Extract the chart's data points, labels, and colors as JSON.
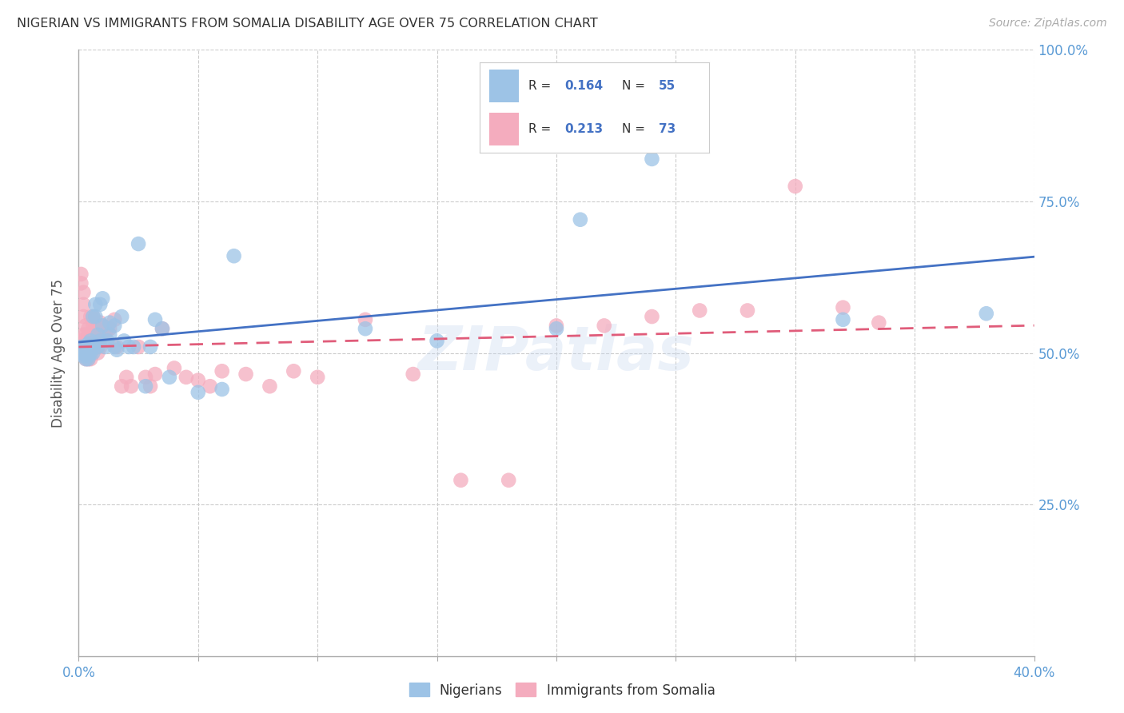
{
  "title": "NIGERIAN VS IMMIGRANTS FROM SOMALIA DISABILITY AGE OVER 75 CORRELATION CHART",
  "source": "Source: ZipAtlas.com",
  "ylabel": "Disability Age Over 75",
  "legend_label1": "Nigerians",
  "legend_label2": "Immigrants from Somalia",
  "r1": 0.164,
  "n1": 55,
  "r2": 0.213,
  "n2": 73,
  "xmin": 0.0,
  "xmax": 0.4,
  "ymin": 0.0,
  "ymax": 1.0,
  "color_blue": "#9DC3E6",
  "color_pink": "#F4ACBE",
  "line_blue": "#4472C4",
  "line_pink": "#E05C7A",
  "background": "#FFFFFF",
  "nigerians_x": [
    0.001,
    0.001,
    0.002,
    0.002,
    0.002,
    0.003,
    0.003,
    0.003,
    0.003,
    0.004,
    0.004,
    0.004,
    0.004,
    0.005,
    0.005,
    0.005,
    0.005,
    0.006,
    0.006,
    0.006,
    0.007,
    0.007,
    0.008,
    0.008,
    0.009,
    0.009,
    0.01,
    0.01,
    0.011,
    0.012,
    0.013,
    0.013,
    0.015,
    0.015,
    0.016,
    0.018,
    0.019,
    0.021,
    0.023,
    0.025,
    0.028,
    0.03,
    0.032,
    0.035,
    0.038,
    0.05,
    0.06,
    0.065,
    0.12,
    0.15,
    0.2,
    0.21,
    0.24,
    0.32,
    0.38
  ],
  "nigerians_y": [
    0.51,
    0.5,
    0.505,
    0.495,
    0.5,
    0.51,
    0.5,
    0.49,
    0.505,
    0.515,
    0.495,
    0.5,
    0.49,
    0.52,
    0.51,
    0.5,
    0.505,
    0.56,
    0.5,
    0.51,
    0.56,
    0.58,
    0.53,
    0.51,
    0.52,
    0.58,
    0.59,
    0.545,
    0.51,
    0.52,
    0.53,
    0.55,
    0.545,
    0.51,
    0.505,
    0.56,
    0.52,
    0.51,
    0.51,
    0.68,
    0.445,
    0.51,
    0.555,
    0.54,
    0.46,
    0.435,
    0.44,
    0.66,
    0.54,
    0.52,
    0.54,
    0.72,
    0.82,
    0.555,
    0.565
  ],
  "somalia_x": [
    0.001,
    0.001,
    0.001,
    0.001,
    0.001,
    0.002,
    0.002,
    0.002,
    0.002,
    0.002,
    0.002,
    0.003,
    0.003,
    0.003,
    0.003,
    0.003,
    0.003,
    0.004,
    0.004,
    0.004,
    0.004,
    0.004,
    0.005,
    0.005,
    0.005,
    0.005,
    0.005,
    0.006,
    0.006,
    0.006,
    0.007,
    0.007,
    0.007,
    0.008,
    0.008,
    0.009,
    0.009,
    0.01,
    0.01,
    0.011,
    0.012,
    0.013,
    0.015,
    0.016,
    0.018,
    0.02,
    0.022,
    0.025,
    0.028,
    0.03,
    0.032,
    0.035,
    0.04,
    0.045,
    0.05,
    0.055,
    0.06,
    0.07,
    0.08,
    0.09,
    0.1,
    0.12,
    0.14,
    0.16,
    0.18,
    0.2,
    0.22,
    0.24,
    0.26,
    0.28,
    0.3,
    0.32,
    0.335
  ],
  "somalia_y": [
    0.52,
    0.615,
    0.63,
    0.51,
    0.5,
    0.6,
    0.56,
    0.53,
    0.51,
    0.58,
    0.505,
    0.545,
    0.51,
    0.5,
    0.53,
    0.49,
    0.51,
    0.54,
    0.51,
    0.5,
    0.49,
    0.53,
    0.56,
    0.51,
    0.5,
    0.52,
    0.49,
    0.545,
    0.53,
    0.56,
    0.54,
    0.52,
    0.51,
    0.545,
    0.5,
    0.55,
    0.51,
    0.545,
    0.53,
    0.53,
    0.54,
    0.54,
    0.555,
    0.51,
    0.445,
    0.46,
    0.445,
    0.51,
    0.46,
    0.445,
    0.465,
    0.54,
    0.475,
    0.46,
    0.455,
    0.445,
    0.47,
    0.465,
    0.445,
    0.47,
    0.46,
    0.555,
    0.465,
    0.29,
    0.29,
    0.545,
    0.545,
    0.56,
    0.57,
    0.57,
    0.775,
    0.575,
    0.55
  ]
}
